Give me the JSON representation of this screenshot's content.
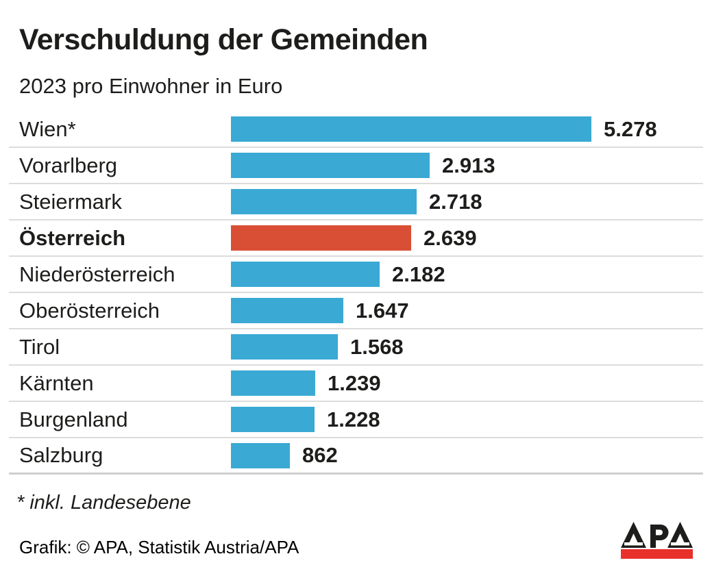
{
  "header": {
    "title": "Verschuldung der Gemeinden",
    "subtitle": "2023 pro Einwohner in Euro"
  },
  "chart_data": {
    "type": "bar",
    "orientation": "horizontal",
    "title": "Verschuldung der Gemeinden",
    "subtitle": "2023 pro Einwohner in Euro",
    "unit": "Euro pro Einwohner",
    "categories": [
      "Wien*",
      "Vorarlberg",
      "Steiermark",
      "Österreich",
      "Niederösterreich",
      "Oberösterreich",
      "Tirol",
      "Kärnten",
      "Burgenland",
      "Salzburg"
    ],
    "values": [
      5278,
      2913,
      2718,
      2639,
      2182,
      1647,
      1568,
      1239,
      1228,
      862
    ],
    "value_labels": [
      "5.278",
      "2.913",
      "2.718",
      "2.639",
      "2.182",
      "1.647",
      "1.568",
      "1.239",
      "1.228",
      "862"
    ],
    "highlight_index": 3,
    "highlight_category": "Österreich",
    "bar_color": "#3aa9d4",
    "highlight_color": "#d94f35",
    "xlim": [
      0,
      5278
    ],
    "grid": false,
    "legend": false,
    "value_label_position": "right-of-bar"
  },
  "footer": {
    "footnote": "* inkl. Landesebene",
    "credit": "Grafik: © APA, Statistik Austria/APA",
    "logo_text": "APA",
    "logo_black": "#1d1d1b",
    "logo_red": "#e8312a"
  }
}
